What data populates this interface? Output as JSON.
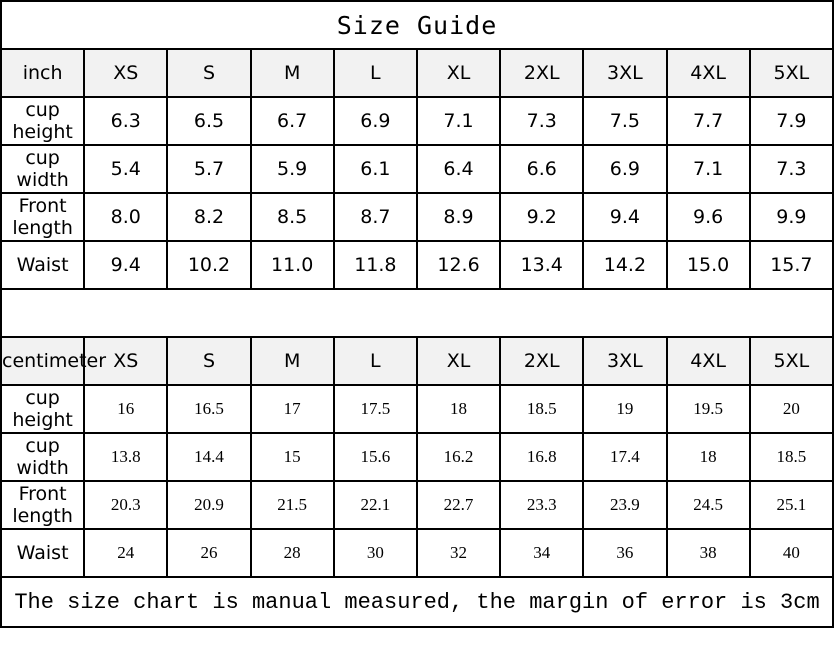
{
  "title": "Size Guide",
  "sizes": [
    "XS",
    "S",
    "M",
    "L",
    "XL",
    "2XL",
    "3XL",
    "4XL",
    "5XL"
  ],
  "inch": {
    "unit_label": "inch",
    "rows": [
      {
        "label": "cup height",
        "values": [
          "6.3",
          "6.5",
          "6.7",
          "6.9",
          "7.1",
          "7.3",
          "7.5",
          "7.7",
          "7.9"
        ]
      },
      {
        "label": "cup width",
        "values": [
          "5.4",
          "5.7",
          "5.9",
          "6.1",
          "6.4",
          "6.6",
          "6.9",
          "7.1",
          "7.3"
        ]
      },
      {
        "label": "Front length",
        "values": [
          "8.0",
          "8.2",
          "8.5",
          "8.7",
          "8.9",
          "9.2",
          "9.4",
          "9.6",
          "9.9"
        ]
      },
      {
        "label": "Waist",
        "values": [
          "9.4",
          "10.2",
          "11.0",
          "11.8",
          "12.6",
          "13.4",
          "14.2",
          "15.0",
          "15.7"
        ]
      }
    ]
  },
  "centimeter": {
    "unit_label": "centimeter",
    "rows": [
      {
        "label": "cup height",
        "values": [
          "16",
          "16.5",
          "17",
          "17.5",
          "18",
          "18.5",
          "19",
          "19.5",
          "20"
        ]
      },
      {
        "label": "cup width",
        "values": [
          "13.8",
          "14.4",
          "15",
          "15.6",
          "16.2",
          "16.8",
          "17.4",
          "18",
          "18.5"
        ]
      },
      {
        "label": "Front length",
        "values": [
          "20.3",
          "20.9",
          "21.5",
          "22.1",
          "22.7",
          "23.3",
          "23.9",
          "24.5",
          "25.1"
        ]
      },
      {
        "label": "Waist",
        "values": [
          "24",
          "26",
          "28",
          "30",
          "32",
          "34",
          "36",
          "38",
          "40"
        ]
      }
    ]
  },
  "footer": "The size chart is manual measured, the margin of error is 3cm"
}
